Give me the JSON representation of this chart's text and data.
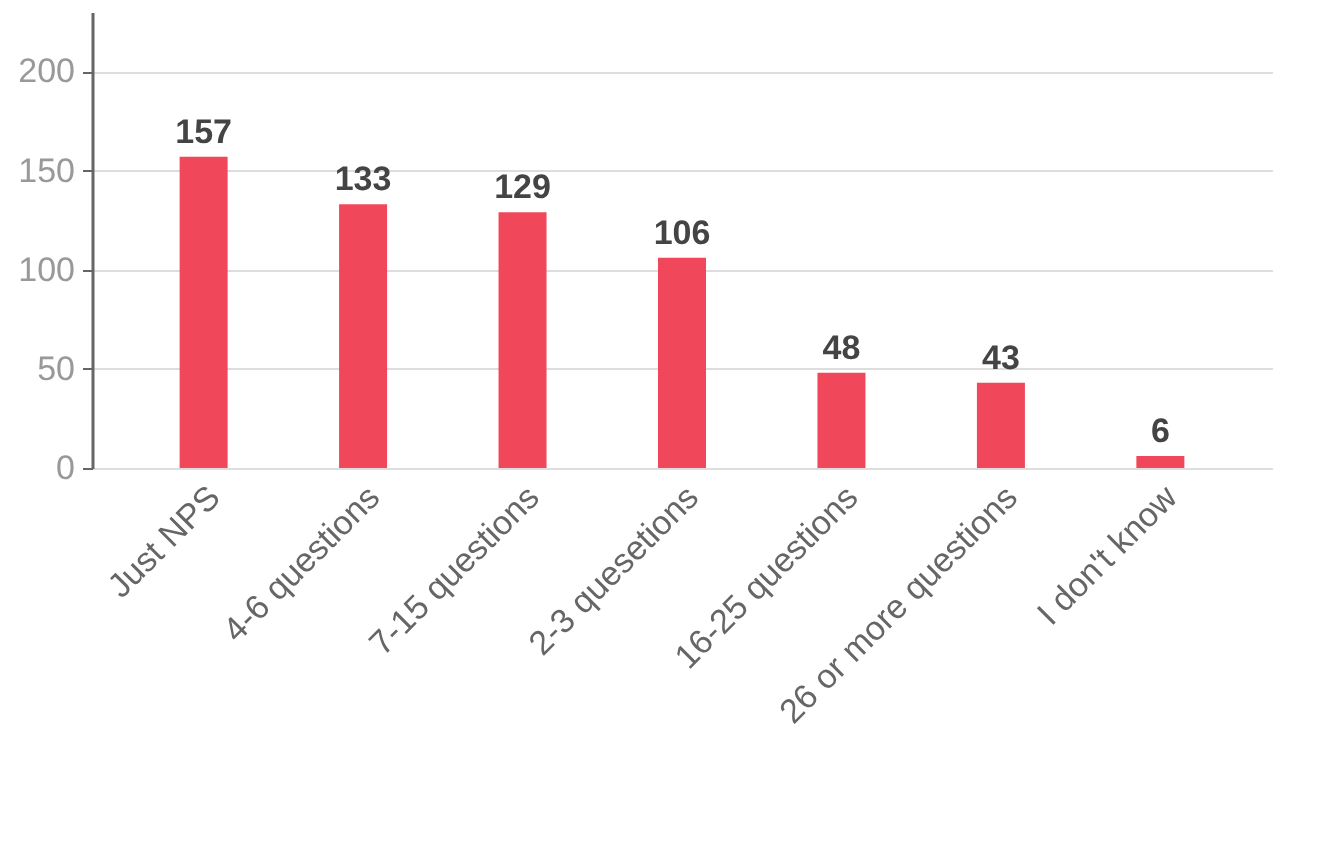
{
  "chart_data": {
    "type": "bar",
    "categories": [
      "Just NPS",
      "4-6 questions",
      "7-15 questions",
      "2-3 quesetions",
      "16-25 questions",
      "26 or more questions",
      "I don't know"
    ],
    "values": [
      157,
      133,
      129,
      106,
      48,
      43,
      6
    ],
    "color": "#f0475b",
    "ylim": [
      0,
      230
    ],
    "yticks": [
      0,
      50,
      100,
      150,
      200
    ],
    "grid": "y",
    "data_labels": true
  }
}
